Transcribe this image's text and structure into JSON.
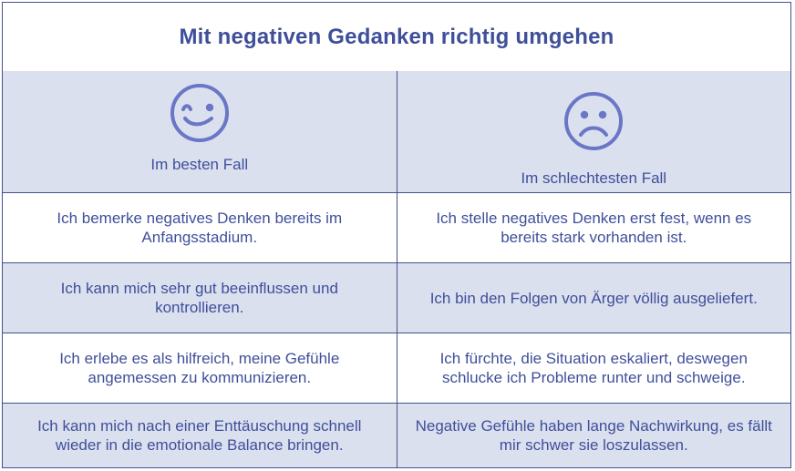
{
  "title": "Mit negativen Gedanken richtig umgehen",
  "header": {
    "best_label": "Im besten Fall",
    "best_icon": "winking-smiley-icon",
    "worst_label": "Im schlechtesten Fall",
    "worst_icon": "sad-face-icon"
  },
  "rows": [
    {
      "best": "Ich bemerke negatives Denken bereits im Anfangsstadium.",
      "worst": "Ich stelle negatives Denken erst fest, wenn es bereits stark vorhanden ist."
    },
    {
      "best": "Ich kann mich sehr gut beeinflussen und kontrollieren.",
      "worst": "Ich bin den Folgen von Ärger völlig ausgeliefert."
    },
    {
      "best": "Ich erlebe es als hilfreich, meine Gefühle angemessen zu kommunizieren.",
      "worst": "Ich fürchte, die Situation eskaliert, deswegen schlucke ich Probleme runter und schweige."
    },
    {
      "best": "Ich kann mich nach einer Enttäuschung schnell wieder in die emotionale Balance bringen.",
      "worst": "Negative Gefühle haben lange Nachwirkung, es fällt mir schwer sie loszulassen."
    }
  ],
  "colors": {
    "text": "#3f4f9a",
    "border": "#46518f",
    "shade": "#dbe0ef",
    "icon": "#6b77c6"
  }
}
